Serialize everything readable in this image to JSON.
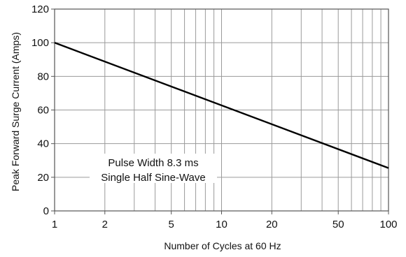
{
  "chart_data": {
    "type": "line",
    "title": "",
    "xlabel": "Number of Cycles at 60 Hz",
    "ylabel": "Peak Forward Surge Current (Amps)",
    "x_scale": "log",
    "xlim": [
      1,
      100
    ],
    "ylim": [
      0,
      120
    ],
    "x_ticks": [
      1,
      2,
      5,
      10,
      20,
      50,
      100
    ],
    "x_tick_labels": [
      "1",
      "2",
      "5",
      "10",
      "20",
      "50",
      "100"
    ],
    "y_ticks": [
      0,
      20,
      40,
      60,
      80,
      100,
      120
    ],
    "y_tick_labels": [
      "0",
      "20",
      "40",
      "60",
      "80",
      "100",
      "120"
    ],
    "grid": true,
    "series": [
      {
        "x": [
          1,
          100
        ],
        "y": [
          100,
          25.5
        ]
      }
    ],
    "annotation": [
      "Pulse Width 8.3 ms",
      "Single Half Sine-Wave"
    ],
    "colors": {
      "line": "#000000",
      "grid": "#9a9a9a",
      "frame": "#555555"
    }
  }
}
